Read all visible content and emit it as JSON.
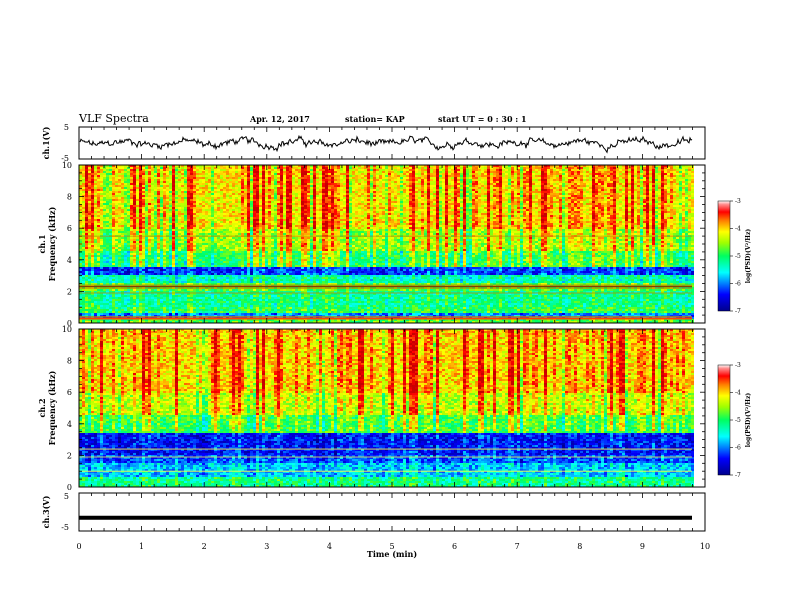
{
  "header": {
    "title": "VLF Spectra",
    "date": "Apr. 12, 2017",
    "station": "station= KAP",
    "start_ut": "start  UT  =   0 : 30 : 1"
  },
  "colors": {
    "waveform": "#000000",
    "colormap": [
      "#00008b",
      "#0000ff",
      "#00ffff",
      "#00ff80",
      "#80ff00",
      "#ffff00",
      "#ff8000",
      "#ff0000",
      "#c00000",
      "#ffffff"
    ]
  },
  "chart_data": [
    {
      "type": "line",
      "name": "ch1-waveform",
      "ylabel": "ch.1(V)",
      "ylim": [
        -5,
        5
      ],
      "yticks": [
        "5",
        "-5"
      ],
      "xlim": [
        0,
        10
      ],
      "description_level": "noisy oscillation near 0 V, amplitude about 1–2 V"
    },
    {
      "type": "heatmap",
      "name": "ch1-spectrogram",
      "ylabel": "ch.1\nFrequency (kHz)",
      "ylim": [
        0,
        10
      ],
      "yticks": [
        "0",
        "2",
        "4",
        "6",
        "8",
        "10"
      ],
      "xlim": [
        0,
        10
      ],
      "colorbar": {
        "range": [
          -7,
          -3
        ],
        "ticks": [
          "-3",
          "-4",
          "-5",
          "-6",
          "-7"
        ],
        "label": "log(PSD)(V²/Hz)"
      }
    },
    {
      "type": "heatmap",
      "name": "ch2-spectrogram",
      "ylabel": "ch.2\nFrequency (kHz)",
      "ylim": [
        0,
        10
      ],
      "yticks": [
        "0",
        "2",
        "4",
        "6",
        "8",
        "10"
      ],
      "xlim": [
        0,
        10
      ],
      "colorbar": {
        "range": [
          -7,
          -3
        ],
        "ticks": [
          "-3",
          "-4",
          "-5",
          "-6",
          "-7"
        ],
        "label": "log(PSD)(V²/Hz)"
      }
    },
    {
      "type": "line",
      "name": "ch3-waveform",
      "ylabel": "ch.3(V)",
      "ylim": [
        -5,
        5
      ],
      "yticks": [
        "5",
        "-5"
      ],
      "xlim": [
        0,
        10
      ],
      "value": -1.5
    }
  ],
  "xaxis": {
    "label": "Time (min)",
    "ticks": [
      "0",
      "1",
      "2",
      "3",
      "4",
      "5",
      "6",
      "7",
      "8",
      "9",
      "10"
    ]
  }
}
